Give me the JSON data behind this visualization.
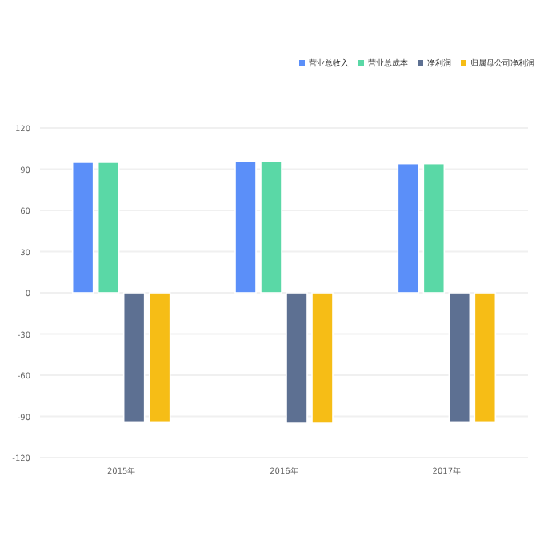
{
  "chart_data": {
    "type": "bar",
    "categories": [
      "2015年",
      "2016年",
      "2017年"
    ],
    "series": [
      {
        "name": "营业总收入",
        "color": "#5b8ff9",
        "values": [
          95,
          96,
          94
        ]
      },
      {
        "name": "营业总成本",
        "color": "#5ad8a6",
        "values": [
          95,
          96,
          94
        ]
      },
      {
        "name": "净利润",
        "color": "#5d7092",
        "values": [
          -94,
          -95,
          -94
        ]
      },
      {
        "name": "归属母公司净利润",
        "color": "#f6bd16",
        "values": [
          -94,
          -95,
          -94
        ]
      }
    ],
    "ylim": [
      -120,
      120
    ],
    "yticks": [
      -120,
      -90,
      -60,
      -30,
      0,
      30,
      60,
      90,
      120
    ],
    "grid": "y",
    "legend": "top right"
  }
}
